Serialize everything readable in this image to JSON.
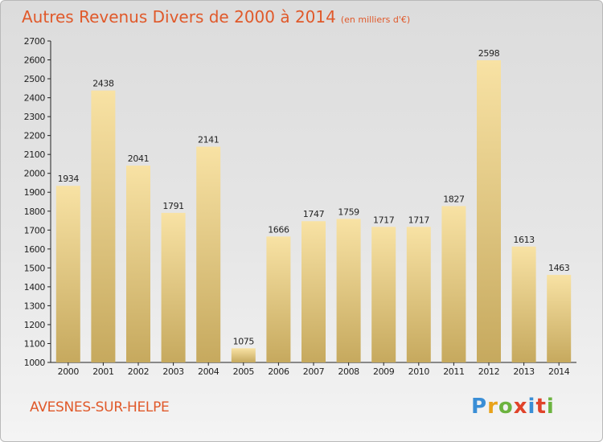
{
  "title": "Autres Revenus Divers de 2000 à 2014",
  "subtitle": "(en milliers d'€)",
  "city": "AVESNES-SUR-HELPE",
  "logo": {
    "text": "Proxiti",
    "letter_colors": [
      "#3a8ed6",
      "#e8a21a",
      "#6cb33f",
      "#e0432a",
      "#3a8ed6",
      "#e0432a",
      "#6cb33f"
    ]
  },
  "colors": {
    "bar_light": "#f8e2a4",
    "bar_dark": "#c6a95e",
    "title": "#e0592a"
  },
  "chart_data": {
    "type": "bar",
    "categories": [
      "2000",
      "2001",
      "2002",
      "2003",
      "2004",
      "2005",
      "2006",
      "2007",
      "2008",
      "2009",
      "2010",
      "2011",
      "2012",
      "2013",
      "2014"
    ],
    "values": [
      1934,
      2438,
      2041,
      1791,
      2141,
      1075,
      1666,
      1747,
      1759,
      1717,
      1717,
      1827,
      2598,
      1613,
      1463
    ],
    "title": "Autres Revenus Divers de 2000 à 2014",
    "xlabel": "",
    "ylabel": "",
    "ylim": [
      1000,
      2700
    ],
    "yticks": [
      1000,
      1100,
      1200,
      1300,
      1400,
      1500,
      1600,
      1700,
      1800,
      1900,
      2000,
      2100,
      2200,
      2300,
      2400,
      2500,
      2600,
      2700
    ],
    "grid": false,
    "legend": "none"
  }
}
